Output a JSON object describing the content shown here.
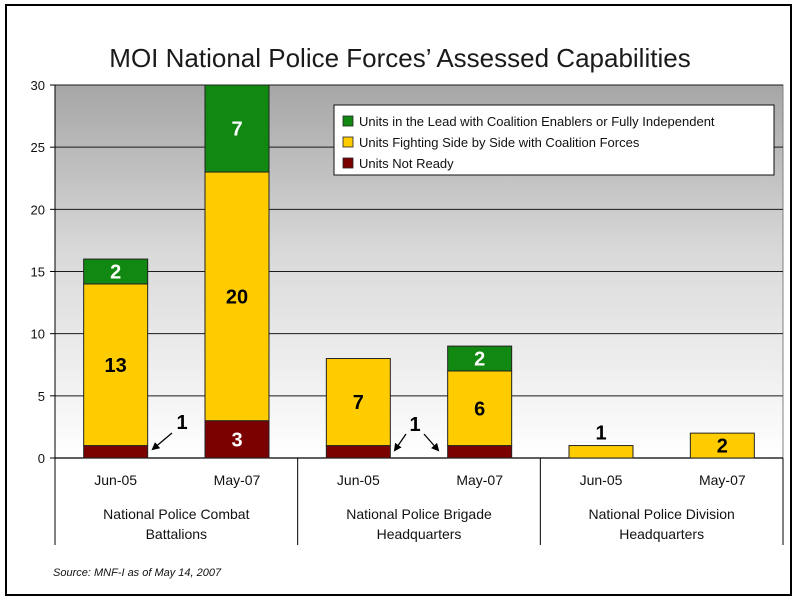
{
  "chart_data": {
    "type": "bar",
    "stacked": true,
    "title": "MOI National Police Forces’ Assessed Capabilities",
    "xlabel": "",
    "ylabel": "",
    "ylim": [
      0,
      30
    ],
    "yticks": [
      0,
      5,
      10,
      15,
      20,
      25,
      30
    ],
    "grid": true,
    "legend_position": "top-right",
    "groups": [
      {
        "label": "National Police Combat\nBattalions",
        "categories": [
          "Jun-05",
          "May-07"
        ]
      },
      {
        "label": "National Police Brigade\nHeadquarters",
        "categories": [
          "Jun-05",
          "May-07"
        ]
      },
      {
        "label": "National Police Division\nHeadquarters",
        "categories": [
          "Jun-05",
          "May-07"
        ]
      }
    ],
    "categories": [
      "Jun-05",
      "May-07",
      "Jun-05",
      "May-07",
      "Jun-05",
      "May-07"
    ],
    "series": [
      {
        "name": "Units Not Ready",
        "color": "#7b0000",
        "values": [
          1,
          3,
          1,
          1,
          0,
          0
        ]
      },
      {
        "name": "Units Fighting Side by Side with Coalition Forces",
        "color": "#ffcc00",
        "values": [
          13,
          20,
          7,
          6,
          1,
          2
        ]
      },
      {
        "name": "Units in the Lead with Coalition Enablers or Fully Independent",
        "color": "#118811",
        "values": [
          2,
          7,
          0,
          2,
          0,
          0
        ]
      }
    ],
    "legend_order": [
      "Units in the Lead with Coalition Enablers or Fully Independent",
      "Units Fighting Side by Side with Coalition Forces",
      "Units Not Ready"
    ],
    "annotations": [
      "1",
      "1"
    ]
  },
  "source": "Source: MNF-I as of May 14, 2007"
}
